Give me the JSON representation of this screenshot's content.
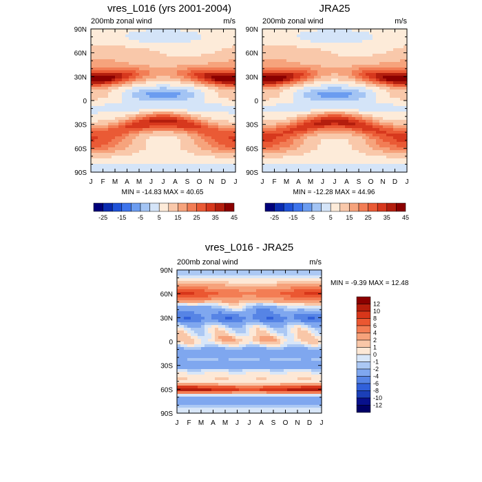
{
  "chart_data": [
    {
      "type": "heatmap",
      "title": "vres_L016 (yrs 2001-2004)",
      "left_label": "200mb zonal wind",
      "right_label": "m/s",
      "x_ticks": [
        "J",
        "F",
        "M",
        "A",
        "M",
        "J",
        "J",
        "A",
        "S",
        "O",
        "N",
        "D",
        "J"
      ],
      "y_ticks": [
        "90N",
        "60N",
        "30N",
        "0",
        "30S",
        "60S",
        "90S"
      ],
      "y_range": [
        -90,
        90
      ],
      "stats": "MIN = -14.83 MAX =  40.65",
      "min": -14.83,
      "max": 40.65,
      "colorbar_labels": [
        "-25",
        "-15",
        "-5",
        "5",
        "15",
        "25",
        "35",
        "45"
      ]
    },
    {
      "type": "heatmap",
      "title": "JRA25",
      "left_label": "200mb zonal wind",
      "right_label": "m/s",
      "x_ticks": [
        "J",
        "F",
        "M",
        "A",
        "M",
        "J",
        "J",
        "A",
        "S",
        "O",
        "N",
        "D",
        "J"
      ],
      "y_ticks": [
        "90N",
        "60N",
        "30N",
        "0",
        "30S",
        "60S",
        "90S"
      ],
      "y_range": [
        -90,
        90
      ],
      "stats": "MIN = -12.28 MAX =  44.96",
      "min": -12.28,
      "max": 44.96,
      "colorbar_labels": [
        "-25",
        "-15",
        "-5",
        "5",
        "15",
        "25",
        "35",
        "45"
      ]
    },
    {
      "type": "heatmap",
      "title": "vres_L016 - JRA25",
      "left_label": "200mb zonal wind",
      "right_label": "m/s",
      "x_ticks": [
        "J",
        "F",
        "M",
        "A",
        "M",
        "J",
        "J",
        "A",
        "S",
        "O",
        "N",
        "D",
        "J"
      ],
      "y_ticks": [
        "90N",
        "60N",
        "30N",
        "0",
        "30S",
        "60S",
        "90S"
      ],
      "y_range": [
        -90,
        90
      ],
      "stats": "MIN =  -9.39 MAX =  12.48",
      "min": -9.39,
      "max": 12.48,
      "colorbar_labels": [
        "12",
        "10",
        "8",
        "6",
        "4",
        "2",
        "1",
        "0",
        "-1",
        "-2",
        "-4",
        "-6",
        "-8",
        "-10",
        "-12"
      ]
    }
  ],
  "palettes": {
    "abs": [
      "#00007a",
      "#0a2bb0",
      "#1f52d8",
      "#3d74ec",
      "#6b9cf0",
      "#a3c4f4",
      "#d4e4f8",
      "#fdebd9",
      "#f9c8aa",
      "#f6a37c",
      "#f27d55",
      "#ea5a35",
      "#d7381d",
      "#b41e0e",
      "#8b0000"
    ],
    "diff": [
      "#8b0000",
      "#b51d0c",
      "#d8361a",
      "#eb5731",
      "#f37d54",
      "#f6a27b",
      "#f9c7a8",
      "#fde8d6",
      "#d8e6f8",
      "#abc8f4",
      "#7fa7ef",
      "#5684e5",
      "#3160da",
      "#1b3fb8",
      "#08108c",
      "#000066"
    ]
  }
}
